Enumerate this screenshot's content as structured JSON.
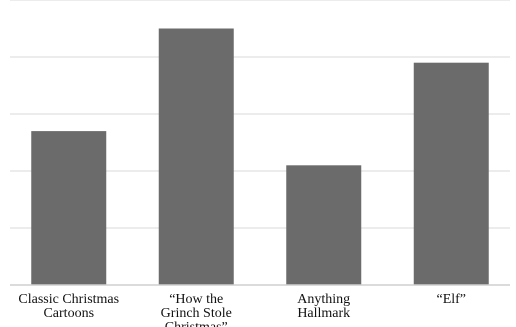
{
  "chart_data": {
    "type": "bar",
    "categories": [
      [
        "Classic Christmas",
        "Cartoons"
      ],
      [
        "“How the",
        "Grinch Stole",
        "Christmas”"
      ],
      [
        "Anything",
        "Hallmark"
      ],
      [
        "“Elf”"
      ]
    ],
    "values": [
      54,
      90,
      42,
      78
    ],
    "ylim": [
      0,
      100
    ],
    "gridlines": 5,
    "grid": true,
    "bar_color": "#6b6b6b",
    "grid_color": "#d9d9d9",
    "axis_color": "#cfcfcf"
  }
}
